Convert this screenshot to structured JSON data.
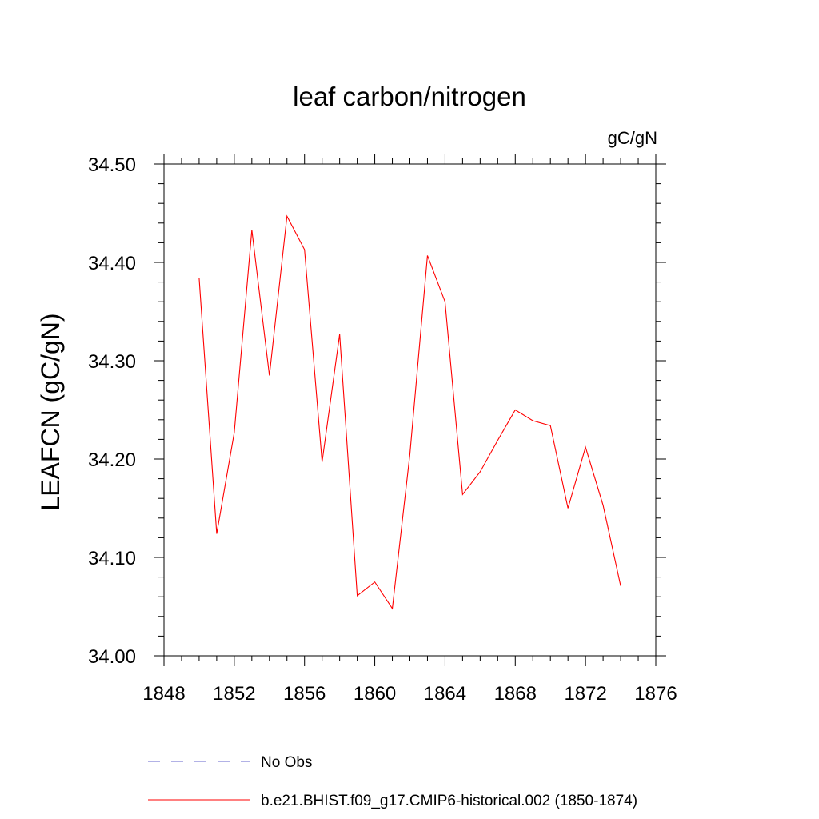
{
  "chart_data": {
    "type": "line",
    "title": "leaf carbon/nitrogen",
    "units_label": "gC/gN",
    "ylabel": "LEAFCN  (gC/gN)",
    "xlabel": "",
    "xlim": [
      1848,
      1876
    ],
    "ylim": [
      34.0,
      34.5
    ],
    "x_ticks": [
      1848,
      1852,
      1856,
      1860,
      1864,
      1868,
      1872,
      1876
    ],
    "x_tick_labels": [
      "1848",
      "1852",
      "1856",
      "1860",
      "1864",
      "1868",
      "1872",
      "1876"
    ],
    "y_ticks": [
      34.0,
      34.1,
      34.2,
      34.3,
      34.4,
      34.5
    ],
    "y_tick_labels": [
      "34.00",
      "34.10",
      "34.20",
      "34.30",
      "34.40",
      "34.50"
    ],
    "series": [
      {
        "name": "b.e21.BHIST.f09_g17.CMIP6-historical.002 (1850-1874)",
        "color": "#ff0000",
        "style": "solid",
        "x": [
          1850,
          1851,
          1852,
          1853,
          1854,
          1855,
          1856,
          1857,
          1858,
          1859,
          1860,
          1861,
          1862,
          1863,
          1864,
          1865,
          1866,
          1867,
          1868,
          1869,
          1870,
          1871,
          1872,
          1873,
          1874
        ],
        "values": [
          34.384,
          34.124,
          34.227,
          34.433,
          34.285,
          34.447,
          34.413,
          34.197,
          34.327,
          34.061,
          34.075,
          34.048,
          34.205,
          34.407,
          34.36,
          34.164,
          34.187,
          34.219,
          34.25,
          34.239,
          34.234,
          34.15,
          34.212,
          34.153,
          34.071
        ]
      }
    ],
    "legend": [
      {
        "label": "No Obs",
        "color": "#6666cc",
        "style": "dashed"
      },
      {
        "label": "b.e21.BHIST.f09_g17.CMIP6-historical.002 (1850-1874)",
        "color": "#ff0000",
        "style": "solid"
      }
    ]
  }
}
